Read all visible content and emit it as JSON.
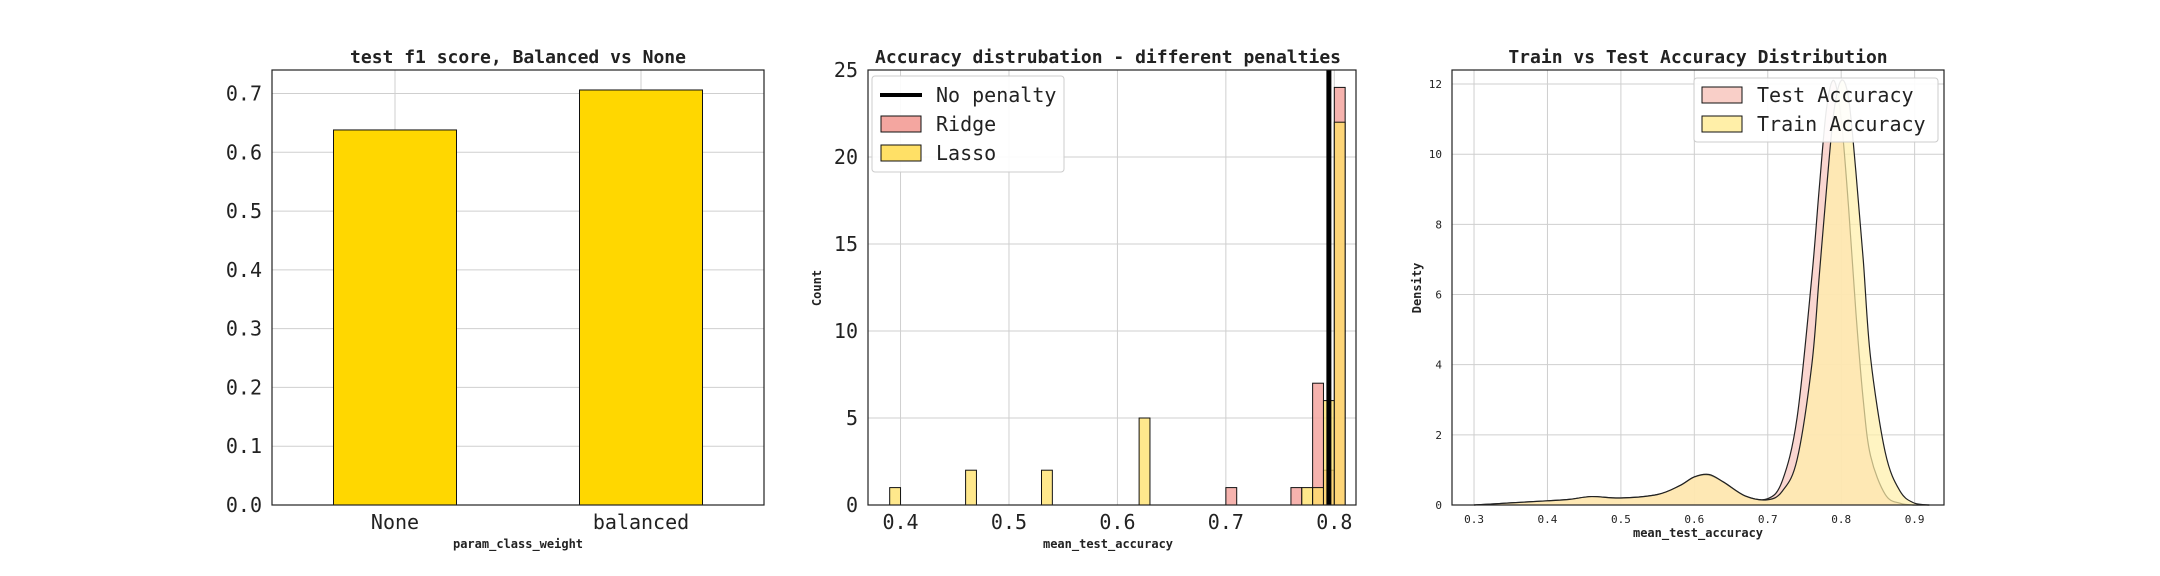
{
  "chart_data": [
    {
      "type": "bar",
      "title": "test f1 score, Balanced vs None",
      "xlabel": "param_class_weight",
      "ylabel": "",
      "categories": [
        "None",
        "balanced"
      ],
      "values": [
        0.638,
        0.706
      ],
      "ylim": [
        0,
        0.74
      ],
      "yticks": [
        "0.0",
        "0.1",
        "0.2",
        "0.3",
        "0.4",
        "0.5",
        "0.6",
        "0.7"
      ],
      "grid": true,
      "colors": {
        "bar": "#FFD700",
        "edge": "#111111"
      }
    },
    {
      "type": "histogram",
      "title": "Accuracy distrubation - different penalties",
      "xlabel": "mean_test_accuracy",
      "ylabel": "Count",
      "xlim": [
        0.37,
        0.82
      ],
      "ylim": [
        0,
        25
      ],
      "xticks": [
        "0.4",
        "0.5",
        "0.6",
        "0.7",
        "0.8"
      ],
      "yticks": [
        "0",
        "5",
        "10",
        "15",
        "20",
        "25"
      ],
      "grid": true,
      "legend_position": "top-left",
      "bin_width": 0.01,
      "vline": {
        "name": "No penalty",
        "x": 0.795,
        "color": "#000000"
      },
      "series": [
        {
          "name": "Ridge",
          "color": "#F4A6A0",
          "bins": [
            [
              0.7,
              1
            ],
            [
              0.76,
              1
            ],
            [
              0.78,
              7
            ],
            [
              0.79,
              2
            ],
            [
              0.8,
              24
            ]
          ]
        },
        {
          "name": "Lasso",
          "color": "#FFE066",
          "bins": [
            [
              0.39,
              1
            ],
            [
              0.46,
              2
            ],
            [
              0.53,
              2
            ],
            [
              0.62,
              5
            ],
            [
              0.77,
              1
            ],
            [
              0.78,
              1
            ],
            [
              0.79,
              6
            ],
            [
              0.8,
              22
            ]
          ]
        }
      ]
    },
    {
      "type": "area",
      "title": "Train vs Test Accuracy Distribution",
      "xlabel": "mean_test_accuracy",
      "ylabel": "Density",
      "xlim": [
        0.27,
        0.94
      ],
      "ylim": [
        0,
        12.4
      ],
      "xticks": [
        "0.3",
        "0.4",
        "0.5",
        "0.6",
        "0.7",
        "0.8",
        "0.9"
      ],
      "yticks": [
        "0",
        "2",
        "4",
        "6",
        "8",
        "10",
        "12"
      ],
      "grid": true,
      "legend_position": "top-right",
      "series": [
        {
          "name": "Test Accuracy",
          "color": "#F9CFC8",
          "x": [
            0.3,
            0.35,
            0.4,
            0.43,
            0.46,
            0.5,
            0.55,
            0.58,
            0.6,
            0.62,
            0.64,
            0.67,
            0.7,
            0.72,
            0.74,
            0.76,
            0.77,
            0.78,
            0.79,
            0.8,
            0.81,
            0.82,
            0.83,
            0.84,
            0.86,
            0.88,
            0.9,
            0.92
          ],
          "y": [
            0,
            0.06,
            0.12,
            0.16,
            0.24,
            0.2,
            0.3,
            0.55,
            0.8,
            0.85,
            0.65,
            0.25,
            0.18,
            0.7,
            2.5,
            6.5,
            9.0,
            11.3,
            12.1,
            11.0,
            8.5,
            5.5,
            3.0,
            1.4,
            0.3,
            0.05,
            0,
            0
          ]
        },
        {
          "name": "Train Accuracy",
          "color": "#FFEFA8",
          "x": [
            0.3,
            0.35,
            0.4,
            0.43,
            0.46,
            0.5,
            0.55,
            0.58,
            0.6,
            0.62,
            0.64,
            0.67,
            0.7,
            0.72,
            0.74,
            0.76,
            0.77,
            0.78,
            0.79,
            0.8,
            0.81,
            0.82,
            0.83,
            0.84,
            0.86,
            0.88,
            0.9,
            0.92
          ],
          "y": [
            0,
            0.06,
            0.12,
            0.16,
            0.24,
            0.2,
            0.3,
            0.55,
            0.8,
            0.87,
            0.65,
            0.25,
            0.15,
            0.4,
            1.3,
            4.0,
            6.5,
            9.0,
            11.2,
            12.1,
            11.6,
            9.5,
            7.0,
            4.2,
            1.5,
            0.4,
            0.05,
            0
          ]
        }
      ]
    }
  ]
}
